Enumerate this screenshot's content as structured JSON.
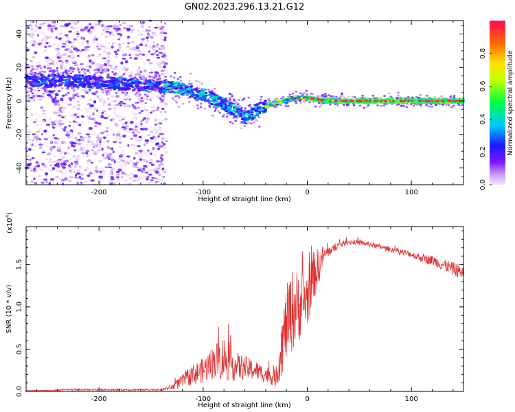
{
  "figure_title": "GN02.2023.296.13.21.G12",
  "colors": {
    "snr_line": "#e03030",
    "spectrum_low": "#e6d3f8",
    "spectrum_mid": "#6a00ff",
    "spectrum_high": "#ff1a4a"
  },
  "chart_data": [
    {
      "type": "heatmap",
      "title": "",
      "xlabel": "Height of straight line (km)",
      "ylabel": "Frequency (Hz)",
      "xlim": [
        -270,
        150
      ],
      "ylim": [
        -50,
        48
      ],
      "xticks": [
        -200,
        -100,
        0,
        100
      ],
      "yticks": [
        -40,
        -20,
        0,
        20,
        40
      ],
      "colorbar": {
        "label": "Normalized spectral amplitude",
        "range": [
          0,
          1
        ],
        "ticks": [
          "0.0",
          "0.2",
          "0.4",
          "0.6",
          "0.8"
        ],
        "colormap": "rainbow (purple → blue → cyan → green → yellow → red)"
      },
      "ridge": {
        "description": "dominant frequency track",
        "points": [
          {
            "x": -250,
            "y": 12
          },
          {
            "x": -220,
            "y": 12
          },
          {
            "x": -200,
            "y": 11
          },
          {
            "x": -175,
            "y": 10
          },
          {
            "x": -150,
            "y": 9
          },
          {
            "x": -125,
            "y": 8
          },
          {
            "x": -100,
            "y": 4
          },
          {
            "x": -80,
            "y": -2
          },
          {
            "x": -60,
            "y": -10
          },
          {
            "x": -50,
            "y": -6
          },
          {
            "x": -40,
            "y": -3
          },
          {
            "x": -25,
            "y": 0
          },
          {
            "x": -10,
            "y": 2
          },
          {
            "x": 0,
            "y": 2
          },
          {
            "x": 20,
            "y": 0
          },
          {
            "x": 150,
            "y": 0
          }
        ]
      }
    },
    {
      "type": "line",
      "title": "",
      "xlabel": "Height of straight line (km)",
      "ylabel": "SNR (10 * v/v)",
      "yscale_label": "(x10",
      "yscale_exp": "4",
      "xlim": [
        -270,
        150
      ],
      "ylim": [
        0,
        1.95
      ],
      "xticks": [
        -200,
        -100,
        0,
        100
      ],
      "yticks": [
        "0.0",
        "0.5",
        "1.0",
        "1.5"
      ],
      "series": [
        {
          "x": [
            -270,
            -250,
            -230,
            -200,
            -180,
            -160,
            -140,
            -130,
            -120,
            -110,
            -100,
            -90,
            -80,
            -70,
            -60,
            -50,
            -40,
            -30,
            -25,
            -20,
            -15,
            -10,
            -5,
            0,
            5,
            10,
            15,
            20,
            30,
            40,
            50,
            60,
            70,
            80,
            90,
            100,
            110,
            120,
            130,
            140,
            150
          ],
          "values": [
            0.01,
            0.01,
            0.02,
            0.02,
            0.02,
            0.02,
            0.02,
            0.05,
            0.12,
            0.2,
            0.25,
            0.35,
            0.4,
            0.3,
            0.28,
            0.25,
            0.2,
            0.15,
            0.5,
            0.8,
            0.95,
            1.0,
            1.05,
            1.1,
            1.35,
            1.45,
            1.6,
            1.65,
            1.73,
            1.77,
            1.76,
            1.74,
            1.71,
            1.68,
            1.65,
            1.62,
            1.58,
            1.55,
            1.5,
            1.45,
            1.4
          ],
          "noise": [
            0.005,
            0.005,
            0.01,
            0.01,
            0.01,
            0.01,
            0.01,
            0.04,
            0.08,
            0.12,
            0.15,
            0.2,
            0.28,
            0.18,
            0.14,
            0.12,
            0.1,
            0.1,
            0.35,
            0.45,
            0.5,
            0.45,
            0.4,
            0.35,
            0.3,
            0.25,
            0.12,
            0.06,
            0.04,
            0.03,
            0.03,
            0.03,
            0.03,
            0.03,
            0.04,
            0.04,
            0.05,
            0.06,
            0.07,
            0.08,
            0.09
          ]
        }
      ]
    }
  ]
}
